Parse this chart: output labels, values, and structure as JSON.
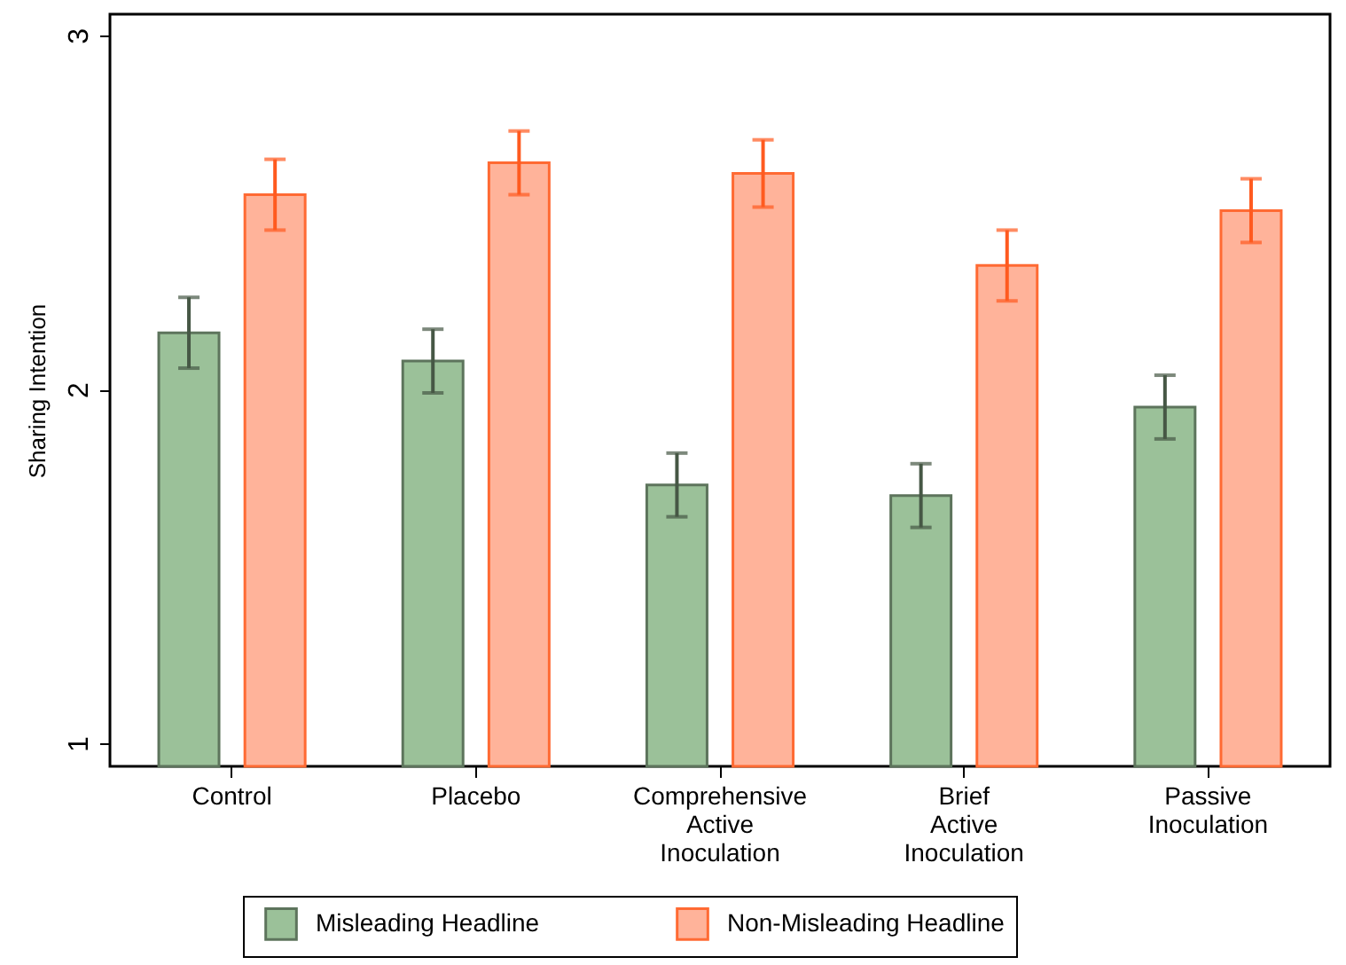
{
  "chart_data": {
    "type": "bar",
    "ylabel": "Sharing Intention",
    "categories": [
      "Control",
      "Placebo",
      "Comprehensive Active Inoculation",
      "Brief Active Inoculation",
      "Passive Inoculation"
    ],
    "series": [
      {
        "name": "Misleading Headline",
        "color": "#9bc199",
        "values": [
          2.16,
          2.08,
          1.73,
          1.7,
          1.95
        ],
        "errors": [
          0.1,
          0.09,
          0.09,
          0.09,
          0.09
        ]
      },
      {
        "name": "Non-Misleading Headline",
        "color": "#ffb39a",
        "values": [
          2.55,
          2.64,
          2.61,
          2.35,
          2.505
        ],
        "errors": [
          0.1,
          0.09,
          0.095,
          0.1,
          0.09
        ]
      }
    ],
    "ylim": [
      0.935,
      3.06
    ],
    "yticks": [
      1,
      2,
      3
    ],
    "grid": false,
    "legend": "bottom"
  }
}
